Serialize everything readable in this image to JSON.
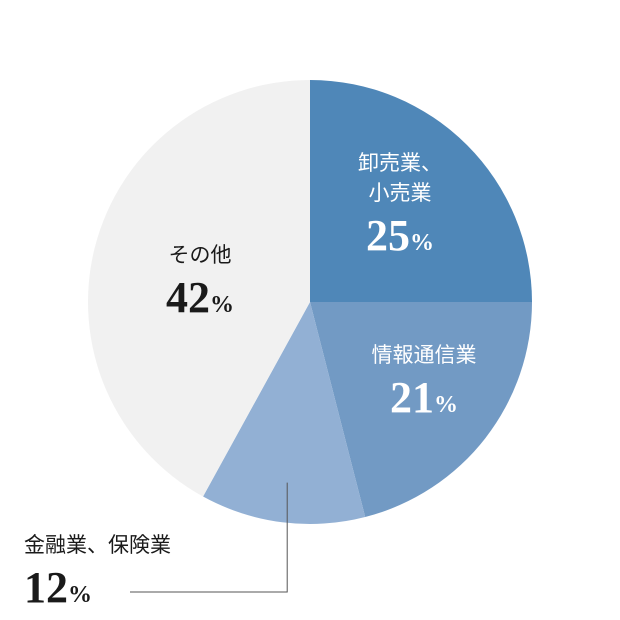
{
  "chart_data": {
    "type": "pie",
    "unit": "%",
    "slices": [
      {
        "label_lines": [
          "卸売業、",
          "小売業"
        ],
        "value": 25,
        "color": "#4f87b8",
        "text_color": "#ffffff"
      },
      {
        "label_lines": [
          "情報通信業"
        ],
        "value": 21,
        "color": "#729ac4",
        "text_color": "#ffffff"
      },
      {
        "label_lines": [
          "金融業、保険業"
        ],
        "value": 12,
        "color": "#92b0d4",
        "text_color": "#1a1a1a"
      },
      {
        "label_lines": [
          "その他"
        ],
        "value": 42,
        "color": "#f1f1f1",
        "text_color": "#1a1a1a"
      }
    ]
  }
}
